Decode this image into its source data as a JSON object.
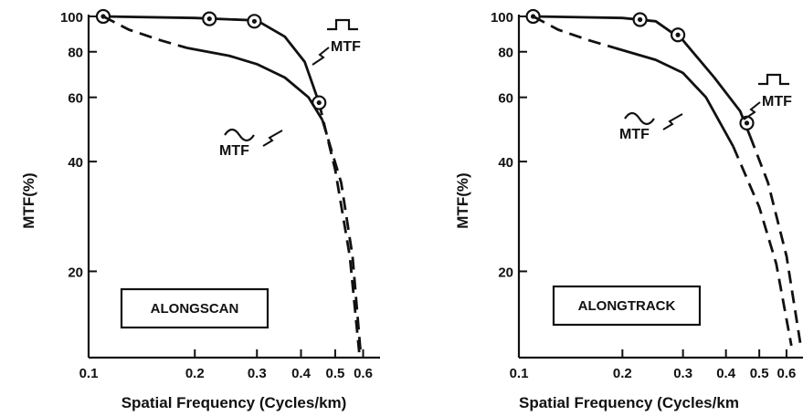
{
  "chart_data": [
    {
      "type": "line",
      "title": "",
      "xlabel": "Spatial Frequency (Cycles/km)",
      "ylabel": "MTF(%)",
      "xscale": "log",
      "yscale": "log",
      "xlim": [
        0.1,
        0.67
      ],
      "ylim": [
        11.6,
        100
      ],
      "xticks": [
        "0.1",
        "0.2",
        "0.3",
        "0.4",
        "0.5",
        "0.6"
      ],
      "yticks": [
        "20",
        "40",
        "60",
        "80",
        "100"
      ],
      "box_label": "ALONGSCAN",
      "annotations": [
        "MTF",
        "MTF"
      ],
      "series": [
        {
          "symbol": "square-wave",
          "solid": {
            "x": [
              0.11,
              0.2,
              0.3,
              0.36,
              0.41,
              0.45
            ],
            "y": [
              100,
              99,
              97.5,
              88,
              75,
              58
            ]
          },
          "dashed": {
            "x": [
              0.45,
              0.5,
              0.55,
              0.585
            ],
            "y": [
              58,
              38,
              22,
              12
            ]
          },
          "markers": {
            "x": [
              0.11,
              0.22,
              0.295,
              0.45
            ],
            "y": [
              100,
              98.5,
              97,
              58
            ]
          }
        },
        {
          "symbol": "sine-wave",
          "dashed": {
            "x": [
              0.11,
              0.13,
              0.16,
              0.19
            ],
            "y": [
              100,
              92,
              86,
              82
            ]
          },
          "solid": {
            "x": [
              0.19,
              0.25,
              0.3,
              0.36,
              0.42,
              0.46
            ],
            "y": [
              82,
              78,
              74,
              68,
              60,
              52
            ]
          },
          "dashed2": {
            "x": [
              0.46,
              0.52,
              0.56,
              0.59
            ],
            "y": [
              52,
              35,
              22,
              12
            ]
          }
        }
      ]
    },
    {
      "type": "line",
      "title": "",
      "xlabel": "Spatial Frequency (Cycles/km",
      "ylabel": "MTF(%)",
      "xscale": "log",
      "yscale": "log",
      "xlim": [
        0.1,
        0.67
      ],
      "ylim": [
        11.6,
        100
      ],
      "xticks": [
        "0.1",
        "0.2",
        "0.3",
        "0.4",
        "0.5",
        "0.6"
      ],
      "yticks": [
        "20",
        "40",
        "60",
        "80",
        "100"
      ],
      "box_label": "ALONGTRACK",
      "annotations": [
        "MTF",
        "MTF"
      ],
      "series": [
        {
          "symbol": "square-wave",
          "solid": {
            "x": [
              0.11,
              0.2,
              0.25,
              0.3,
              0.37,
              0.44,
              0.47
            ],
            "y": [
              100,
              99,
              97,
              86,
              68,
              55,
              47
            ]
          },
          "dashed": {
            "x": [
              0.47,
              0.53,
              0.6,
              0.66
            ],
            "y": [
              47,
              35,
              22,
              12.5
            ]
          },
          "markers": {
            "x": [
              0.11,
              0.225,
              0.29,
              0.46
            ],
            "y": [
              100,
              98,
              89,
              51
            ]
          }
        },
        {
          "symbol": "sine-wave",
          "dashed": {
            "x": [
              0.11,
              0.13,
              0.16,
              0.19
            ],
            "y": [
              100,
              92,
              86,
              82
            ]
          },
          "solid": {
            "x": [
              0.19,
              0.25,
              0.3,
              0.35,
              0.42
            ],
            "y": [
              82,
              76,
              70,
              60,
              44
            ]
          },
          "dashed2": {
            "x": [
              0.42,
              0.5,
              0.56,
              0.62
            ],
            "y": [
              44,
              30,
              21,
              12.5
            ]
          }
        }
      ]
    }
  ]
}
